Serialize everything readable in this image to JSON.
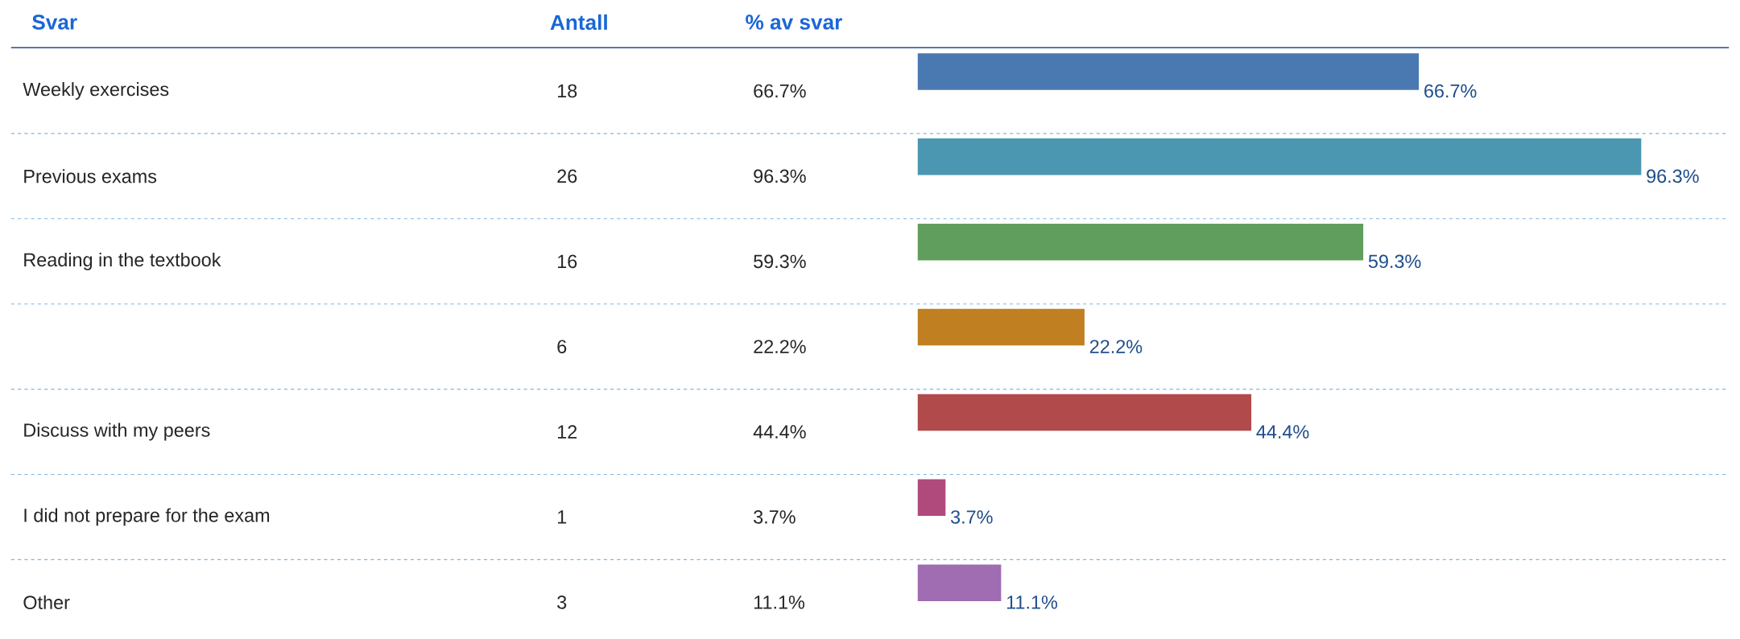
{
  "chart_data": {
    "type": "bar",
    "orientation": "horizontal",
    "ylabel": "Svar",
    "categories": [
      "Weekly exercises",
      "Previous exams",
      "Reading in the textbook",
      null,
      "Discuss with my peers",
      "I did not prepare for the exam",
      "Other"
    ],
    "values": [
      66.7,
      96.3,
      59.3,
      22.2,
      44.4,
      3.7,
      11.1
    ],
    "colors": [
      "#4a79b2",
      "#4b97b1",
      "#609e5d",
      "#c08022",
      "#b04a4b",
      "#b04a7d",
      "#a06cb2"
    ],
    "value_labels": [
      "66.7%",
      "96.3%",
      "59.3%",
      "22.2%",
      "44.4%",
      "3.7%",
      "11.1%"
    ],
    "annotations": [
      "Antall",
      "% av svar",
      "18",
      "26",
      "16",
      "6",
      "12",
      "1",
      "3"
    ]
  }
}
